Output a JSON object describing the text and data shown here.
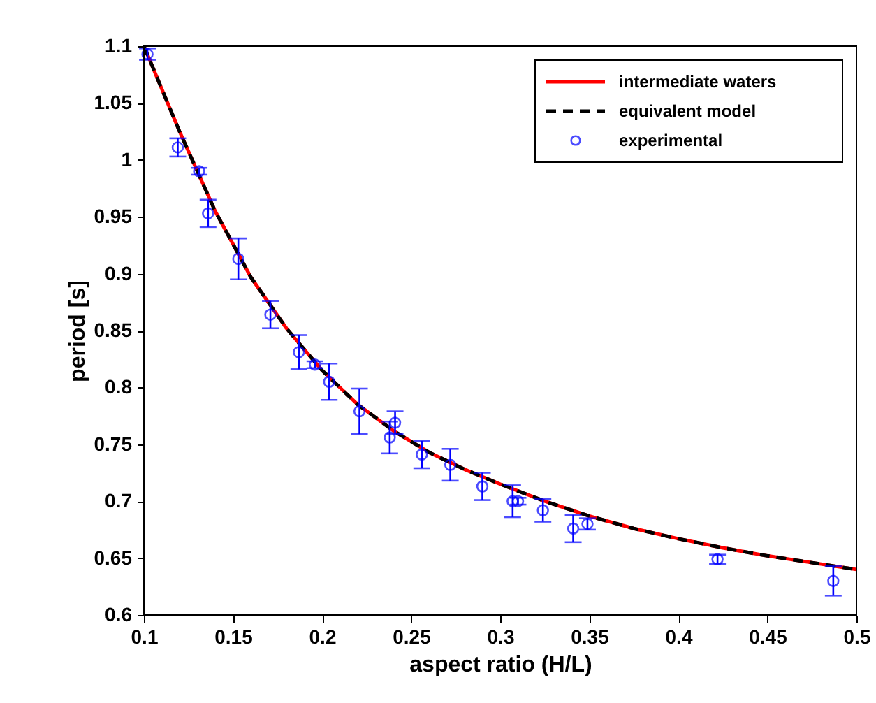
{
  "chart_data": {
    "type": "line",
    "xlabel": "aspect ratio (H/L)",
    "ylabel": "period [s]",
    "xlim": [
      0.1,
      0.5
    ],
    "xticks": [
      0.1,
      0.15,
      0.2,
      0.25,
      0.3,
      0.35,
      0.4,
      0.45,
      0.5
    ],
    "ylim": [
      0.6,
      1.1
    ],
    "yticks": [
      0.6,
      0.65,
      0.7,
      0.75,
      0.8,
      0.85,
      0.9,
      0.95,
      1,
      1.05,
      1.1
    ],
    "grid": false,
    "legend": "top right",
    "series": [
      {
        "name": "intermediate waters",
        "line_style": "solid",
        "marker": "none",
        "color": "#ff0000",
        "x": [
          0.1,
          0.12,
          0.14,
          0.16,
          0.18,
          0.2,
          0.22,
          0.24,
          0.26,
          0.28,
          0.3,
          0.325,
          0.35,
          0.375,
          0.4,
          0.425,
          0.45,
          0.475,
          0.5
        ],
        "values": [
          1.1,
          1.025,
          0.955,
          0.897,
          0.852,
          0.815,
          0.785,
          0.762,
          0.743,
          0.728,
          0.715,
          0.7,
          0.687,
          0.676,
          0.667,
          0.659,
          0.652,
          0.646,
          0.64
        ]
      },
      {
        "name": "equivalent model",
        "line_style": "dashed",
        "marker": "none",
        "color": "#000000",
        "x": [
          0.1,
          0.12,
          0.14,
          0.16,
          0.18,
          0.2,
          0.22,
          0.24,
          0.26,
          0.28,
          0.3,
          0.325,
          0.35,
          0.375,
          0.4,
          0.425,
          0.45,
          0.475,
          0.5
        ],
        "values": [
          1.1,
          1.025,
          0.955,
          0.897,
          0.852,
          0.815,
          0.785,
          0.762,
          0.743,
          0.728,
          0.715,
          0.7,
          0.687,
          0.676,
          0.667,
          0.659,
          0.652,
          0.646,
          0.64
        ]
      },
      {
        "name": "experimental",
        "type": "scatter",
        "marker": "circle",
        "color": "#0000ff",
        "x": [
          0.102,
          0.119,
          0.131,
          0.136,
          0.153,
          0.171,
          0.187,
          0.196,
          0.204,
          0.221,
          0.238,
          0.241,
          0.256,
          0.272,
          0.29,
          0.307,
          0.31,
          0.324,
          0.341,
          0.349,
          0.422,
          0.487
        ],
        "values": [
          1.093,
          1.011,
          0.99,
          0.953,
          0.913,
          0.864,
          0.831,
          0.82,
          0.805,
          0.779,
          0.756,
          0.769,
          0.741,
          0.732,
          0.713,
          0.7,
          0.7,
          0.692,
          0.676,
          0.68,
          0.649,
          0.63
        ],
        "errors": [
          0.005,
          0.008,
          0.003,
          0.012,
          0.018,
          0.012,
          0.015,
          0.003,
          0.016,
          0.02,
          0.014,
          0.01,
          0.012,
          0.014,
          0.012,
          0.014,
          0.003,
          0.01,
          0.012,
          0.005,
          0.004,
          0.013
        ]
      }
    ]
  }
}
